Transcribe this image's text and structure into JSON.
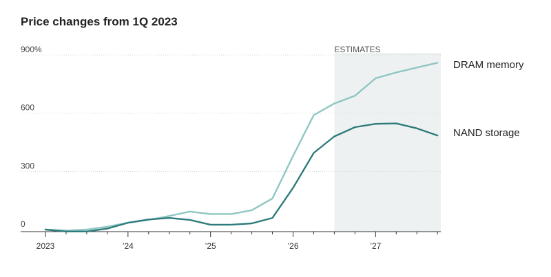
{
  "chart_data": {
    "type": "line",
    "title": "Price changes from 1Q 2023",
    "xlabel": "",
    "ylabel": "",
    "x": [
      2023.0,
      2023.25,
      2023.5,
      2023.75,
      2024.0,
      2024.25,
      2024.5,
      2024.75,
      2025.0,
      2025.25,
      2025.5,
      2025.75,
      2026.0,
      2026.25,
      2026.5,
      2026.75,
      2027.0,
      2027.25,
      2027.5,
      2027.75
    ],
    "xlim": [
      2023.0,
      2027.79
    ],
    "ylim": [
      -10,
      900
    ],
    "y_ticks": [
      {
        "value": 900,
        "label": "900%"
      },
      {
        "value": 600,
        "label": "600"
      },
      {
        "value": 300,
        "label": "300"
      },
      {
        "value": 0,
        "label": "0"
      }
    ],
    "x_ticks": [
      {
        "value": 2023,
        "label": "2023"
      },
      {
        "value": 2024,
        "label": "’24"
      },
      {
        "value": 2025,
        "label": "’25"
      },
      {
        "value": 2026,
        "label": "’26"
      },
      {
        "value": 2027,
        "label": "’27"
      }
    ],
    "grid": "horizontal",
    "estimates": {
      "label": "ESTIMATES",
      "x_start": 2026.5,
      "x_end": 2027.79
    },
    "series": [
      {
        "name": "DRAM memory",
        "color": "#8fc6c3",
        "values": [
          0,
          -5,
          0,
          15,
          35,
          50,
          70,
          93,
          80,
          80,
          100,
          160,
          380,
          590,
          650,
          690,
          780,
          810,
          835,
          860
        ]
      },
      {
        "name": "NAND storage",
        "color": "#2e7b7c",
        "values": [
          0,
          -10,
          -10,
          5,
          35,
          52,
          60,
          50,
          25,
          25,
          32,
          60,
          215,
          395,
          480,
          528,
          545,
          547,
          522,
          485
        ]
      }
    ]
  }
}
